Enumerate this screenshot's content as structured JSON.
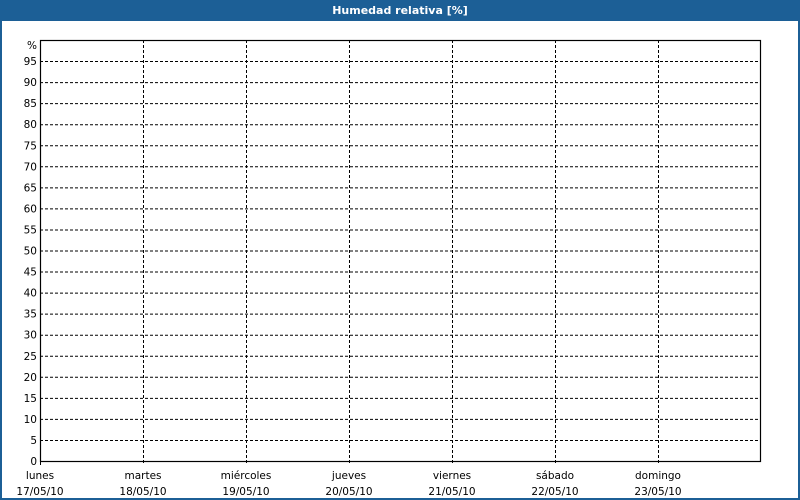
{
  "window": {
    "title": "Humedad relativa [%]",
    "accent_color": "#1c5f96"
  },
  "chart_data": {
    "type": "line",
    "title": "Humedad relativa [%]",
    "ylabel": "%",
    "ylim": [
      0,
      100
    ],
    "yticks": [
      0,
      5,
      10,
      15,
      20,
      25,
      30,
      35,
      40,
      45,
      50,
      55,
      60,
      65,
      70,
      75,
      80,
      85,
      90,
      95
    ],
    "categories": [
      {
        "day": "lunes",
        "date": "17/05/10"
      },
      {
        "day": "martes",
        "date": "18/05/10"
      },
      {
        "day": "miércoles",
        "date": "19/05/10"
      },
      {
        "day": "jueves",
        "date": "20/05/10"
      },
      {
        "day": "viernes",
        "date": "21/05/10"
      },
      {
        "day": "sábado",
        "date": "22/05/10"
      },
      {
        "day": "domingo",
        "date": "23/05/10"
      }
    ],
    "grid": true,
    "series": []
  }
}
